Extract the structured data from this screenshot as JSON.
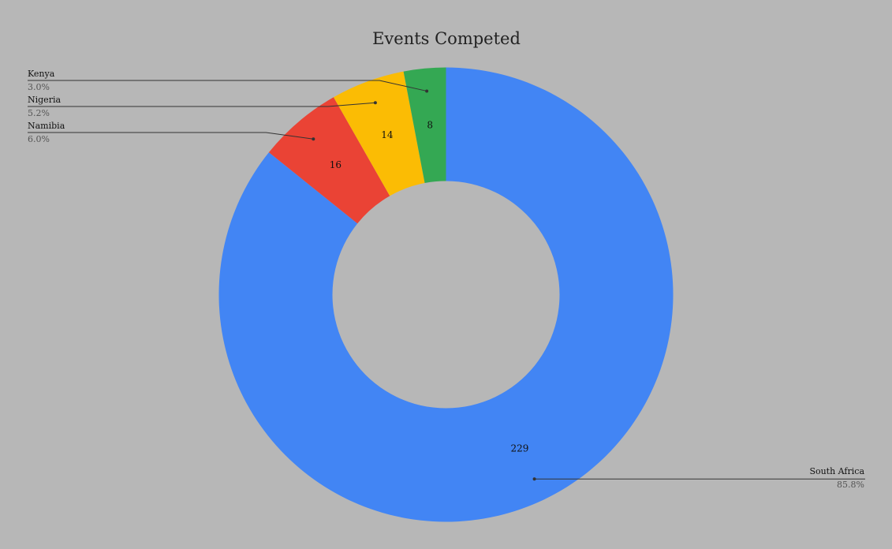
{
  "chart_data": {
    "type": "pie",
    "variant": "donut",
    "title": "Events Competed",
    "categories": [
      "South Africa",
      "Namibia",
      "Nigeria",
      "Kenya"
    ],
    "values": [
      229,
      16,
      14,
      8
    ],
    "percent_labels": [
      "85.8%",
      "6.0%",
      "5.2%",
      "3.0%"
    ],
    "colors": [
      "#4285f4",
      "#ea4335",
      "#fbbc04",
      "#34a853"
    ],
    "background": "#b7b7b7",
    "legend": "callouts"
  }
}
